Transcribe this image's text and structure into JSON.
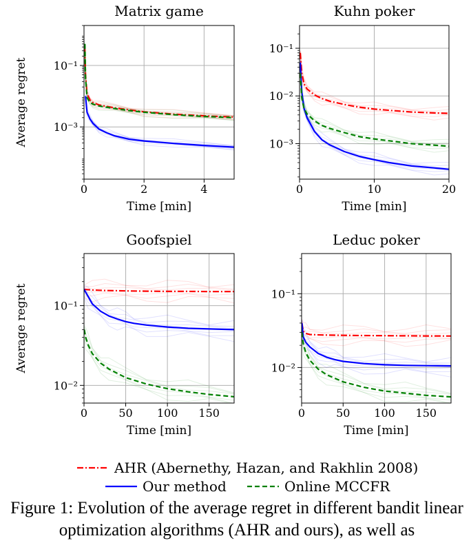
{
  "chart_data": [
    {
      "type": "line",
      "title": "Matrix game",
      "xlabel": "Time [min]",
      "ylabel": "Average regret",
      "yscale": "log",
      "xlim": [
        0,
        5
      ],
      "ylim": [
        2e-05,
        2
      ],
      "xticks": [
        0,
        2,
        4
      ],
      "xtick_labels": [
        "0",
        "2",
        "4"
      ],
      "yticks": [
        0.1,
        0.001
      ],
      "ytick_labels": [
        "10⁻¹",
        "10⁻³"
      ],
      "grid": true,
      "series": [
        {
          "name": "AHR (Abernethy, Hazan, and Rakhlin 2008)",
          "color": "#ff0000",
          "style": "dashdot",
          "x": [
            0.03,
            0.05,
            0.1,
            0.2,
            0.3,
            0.5,
            1,
            1.5,
            2,
            3,
            4,
            5
          ],
          "y": [
            0.35,
            0.05,
            0.012,
            0.0075,
            0.0062,
            0.0052,
            0.0042,
            0.0036,
            0.0031,
            0.0026,
            0.0023,
            0.0021
          ]
        },
        {
          "name": "Our method",
          "color": "#0000ff",
          "style": "solid",
          "x": [
            0.05,
            0.1,
            0.2,
            0.3,
            0.5,
            0.75,
            1,
            1.5,
            2,
            3,
            4,
            5
          ],
          "y": [
            0.01,
            0.003,
            0.0018,
            0.0013,
            0.00085,
            0.00065,
            0.00052,
            0.0004,
            0.00035,
            0.00029,
            0.00025,
            0.00022
          ]
        },
        {
          "name": "Online MCCFR",
          "color": "#008000",
          "style": "dashed",
          "x": [
            0.03,
            0.05,
            0.1,
            0.2,
            0.3,
            0.5,
            1,
            1.5,
            2,
            3,
            4,
            5
          ],
          "y": [
            0.5,
            0.04,
            0.009,
            0.0062,
            0.0055,
            0.0048,
            0.004,
            0.0034,
            0.003,
            0.0025,
            0.0022,
            0.002
          ]
        }
      ]
    },
    {
      "type": "line",
      "title": "Kuhn poker",
      "xlabel": "Time [min]",
      "ylabel": "",
      "yscale": "log",
      "xlim": [
        0,
        20
      ],
      "ylim": [
        0.00018,
        0.3
      ],
      "xticks": [
        0,
        10,
        20
      ],
      "xtick_labels": [
        "0",
        "10",
        "20"
      ],
      "yticks": [
        0.1,
        0.01,
        0.001
      ],
      "ytick_labels": [
        "10⁻¹",
        "10⁻²",
        "10⁻³"
      ],
      "grid": true,
      "series": [
        {
          "name": "AHR (Abernethy, Hazan, and Rakhlin 2008)",
          "color": "#ff0000",
          "style": "dashdot",
          "x": [
            0.1,
            0.3,
            0.6,
            1,
            2,
            3,
            4,
            6,
            8,
            10,
            12,
            15,
            18,
            20
          ],
          "y": [
            0.08,
            0.03,
            0.018,
            0.014,
            0.0105,
            0.0088,
            0.0078,
            0.0066,
            0.0058,
            0.0053,
            0.005,
            0.0046,
            0.0044,
            0.0043
          ]
        },
        {
          "name": "Our method",
          "color": "#0000ff",
          "style": "solid",
          "x": [
            0.1,
            0.3,
            0.6,
            1,
            2,
            3,
            4,
            6,
            8,
            10,
            12,
            15,
            18,
            20
          ],
          "y": [
            0.05,
            0.012,
            0.0055,
            0.0035,
            0.0018,
            0.0012,
            0.00095,
            0.00068,
            0.00054,
            0.00046,
            0.0004,
            0.00034,
            0.00031,
            0.00029
          ]
        },
        {
          "name": "Online MCCFR",
          "color": "#008000",
          "style": "dashed",
          "x": [
            0.1,
            0.3,
            0.6,
            1,
            2,
            3,
            4,
            6,
            8,
            10,
            12,
            15,
            18,
            20
          ],
          "y": [
            0.03,
            0.009,
            0.0055,
            0.0042,
            0.003,
            0.0024,
            0.0021,
            0.0017,
            0.0014,
            0.00125,
            0.00115,
            0.001,
            0.00093,
            0.00088
          ]
        }
      ]
    },
    {
      "type": "line",
      "title": "Goofspiel",
      "xlabel": "Time [min]",
      "ylabel": "Average regret",
      "yscale": "log",
      "xlim": [
        0,
        180
      ],
      "ylim": [
        0.006,
        0.45
      ],
      "xticks": [
        0,
        50,
        100,
        150
      ],
      "xtick_labels": [
        "0",
        "50",
        "100",
        "150"
      ],
      "yticks": [
        0.1,
        0.01
      ],
      "ytick_labels": [
        "10⁻¹",
        "10⁻²"
      ],
      "grid": true,
      "series": [
        {
          "name": "AHR (Abernethy, Hazan, and Rakhlin 2008)",
          "color": "#ff0000",
          "style": "dashdot",
          "x": [
            0,
            10,
            25,
            50,
            75,
            100,
            125,
            150,
            180
          ],
          "y": [
            0.16,
            0.157,
            0.155,
            0.153,
            0.152,
            0.151,
            0.151,
            0.15,
            0.15
          ]
        },
        {
          "name": "Our method",
          "color": "#0000ff",
          "style": "solid",
          "x": [
            0,
            5,
            10,
            20,
            30,
            40,
            50,
            60,
            75,
            100,
            125,
            150,
            180
          ],
          "y": [
            0.16,
            0.13,
            0.105,
            0.085,
            0.074,
            0.068,
            0.063,
            0.06,
            0.057,
            0.054,
            0.052,
            0.051,
            0.05
          ]
        },
        {
          "name": "Online MCCFR",
          "color": "#008000",
          "style": "dashed",
          "x": [
            0.3,
            2,
            5,
            10,
            20,
            30,
            50,
            75,
            100,
            125,
            150,
            180
          ],
          "y": [
            0.05,
            0.04,
            0.032,
            0.025,
            0.019,
            0.016,
            0.0125,
            0.0104,
            0.0091,
            0.0083,
            0.0077,
            0.0072
          ]
        }
      ]
    },
    {
      "type": "line",
      "title": "Leduc poker",
      "xlabel": "Time [min]",
      "ylabel": "",
      "yscale": "log",
      "xlim": [
        0,
        180
      ],
      "ylim": [
        0.0033,
        0.35
      ],
      "xticks": [
        0,
        50,
        100,
        150
      ],
      "xtick_labels": [
        "0",
        "50",
        "100",
        "150"
      ],
      "yticks": [
        0.1,
        0.01
      ],
      "ytick_labels": [
        "10⁻¹",
        "10⁻²"
      ],
      "grid": true,
      "series": [
        {
          "name": "AHR (Abernethy, Hazan, and Rakhlin 2008)",
          "color": "#ff0000",
          "style": "dashdot",
          "x": [
            0.3,
            2,
            5,
            10,
            25,
            50,
            75,
            100,
            125,
            150,
            180
          ],
          "y": [
            0.04,
            0.031,
            0.029,
            0.028,
            0.0276,
            0.0273,
            0.0271,
            0.027,
            0.0269,
            0.0268,
            0.0267
          ]
        },
        {
          "name": "Our method",
          "color": "#0000ff",
          "style": "solid",
          "x": [
            0.3,
            2,
            5,
            10,
            20,
            30,
            40,
            50,
            75,
            100,
            125,
            150,
            180
          ],
          "y": [
            0.04,
            0.026,
            0.022,
            0.019,
            0.0155,
            0.0138,
            0.0128,
            0.0121,
            0.0113,
            0.0109,
            0.0107,
            0.0106,
            0.0105
          ]
        },
        {
          "name": "Online MCCFR",
          "color": "#008000",
          "style": "dashed",
          "x": [
            0.3,
            2,
            5,
            10,
            20,
            30,
            50,
            75,
            100,
            125,
            150,
            180
          ],
          "y": [
            0.03,
            0.021,
            0.016,
            0.0125,
            0.0095,
            0.008,
            0.0064,
            0.0054,
            0.0048,
            0.0045,
            0.0042,
            0.004
          ]
        }
      ]
    }
  ],
  "legend": {
    "placement": "bottom-center",
    "entries": [
      {
        "label": "AHR (Abernethy, Hazan, and Rakhlin 2008)",
        "color": "#ff0000",
        "style": "dashdot"
      },
      {
        "label": "Our method",
        "color": "#0000ff",
        "style": "solid"
      },
      {
        "label": "Online MCCFR",
        "color": "#008000",
        "style": "dashed"
      }
    ]
  },
  "caption": "Figure 1: Evolution of the average regret in different bandit linear optimization algorithms (AHR and ours), as well as"
}
